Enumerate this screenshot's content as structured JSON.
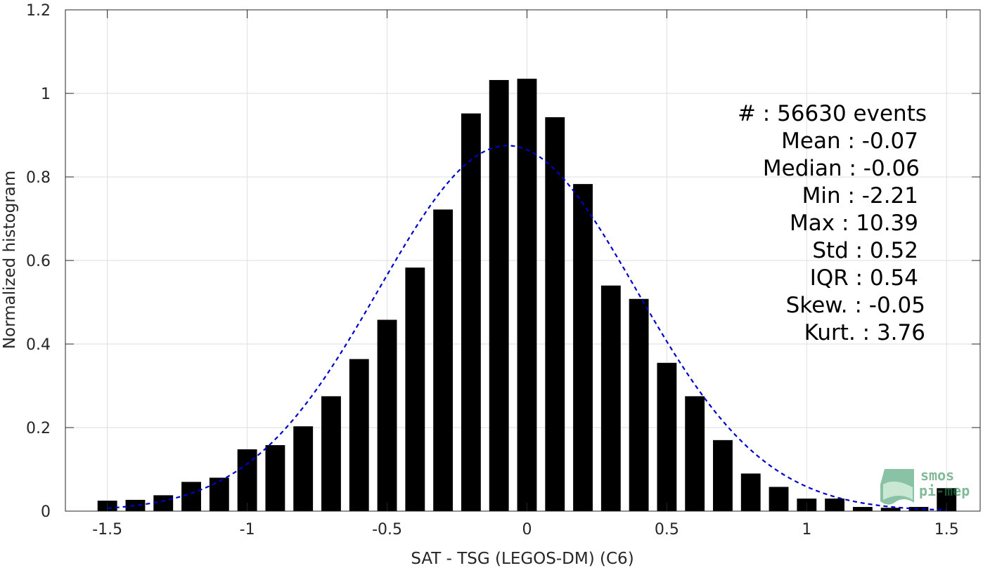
{
  "chart_data": {
    "type": "bar",
    "xlabel": "SAT - TSG (LEGOS-DM) (C6)",
    "ylabel": "Normalized histogram",
    "xlim": [
      -1.65,
      1.62
    ],
    "ylim": [
      0,
      1.2
    ],
    "xticks": [
      -1.5,
      -1,
      -0.5,
      0,
      0.5,
      1,
      1.5
    ],
    "xtick_labels": [
      "-1.5",
      "-1",
      "-0.5",
      "0",
      "0.5",
      "1",
      "1.5"
    ],
    "yticks": [
      0,
      0.2,
      0.4,
      0.6,
      0.8,
      1,
      1.2
    ],
    "ytick_labels": [
      "0",
      "0.2",
      "0.4",
      "0.6",
      "0.8",
      "1",
      "1.2"
    ],
    "grid": true,
    "bar_color": "#000000",
    "bar_width": 0.07,
    "bins": {
      "x": [
        -1.5,
        -1.4,
        -1.3,
        -1.2,
        -1.1,
        -1.0,
        -0.9,
        -0.8,
        -0.7,
        -0.6,
        -0.5,
        -0.4,
        -0.3,
        -0.2,
        -0.1,
        0.0,
        0.1,
        0.2,
        0.3,
        0.4,
        0.5,
        0.6,
        0.7,
        0.8,
        0.9,
        1.0,
        1.1,
        1.2,
        1.3,
        1.4,
        1.5
      ],
      "values": [
        0.025,
        0.027,
        0.038,
        0.07,
        0.08,
        0.148,
        0.158,
        0.203,
        0.275,
        0.364,
        0.458,
        0.583,
        0.722,
        0.952,
        1.032,
        1.035,
        0.943,
        0.783,
        0.54,
        0.508,
        0.355,
        0.275,
        0.17,
        0.09,
        0.058,
        0.03,
        0.03,
        0.01,
        0.008,
        0.01,
        0.055
      ]
    },
    "fit": {
      "type": "normal",
      "mean": -0.07,
      "std": 0.46,
      "peak": 0.875,
      "x_range": [
        -1.5,
        1.5
      ],
      "color": "#0000cc",
      "style": "dashed"
    }
  },
  "stats": [
    {
      "label": "#  : 56630 events"
    },
    {
      "label": "Mean : -0.07"
    },
    {
      "label": "Median : -0.06"
    },
    {
      "label": "Min : -2.21"
    },
    {
      "label": "Max : 10.39"
    },
    {
      "label": "Std : 0.52"
    },
    {
      "label": "IQR : 0.54"
    },
    {
      "label": "Skew. : -0.05"
    },
    {
      "label": "Kurt. : 3.76"
    }
  ],
  "logo": {
    "line1": "smos",
    "line2": "pi-mep",
    "color": "#2e8b57"
  }
}
